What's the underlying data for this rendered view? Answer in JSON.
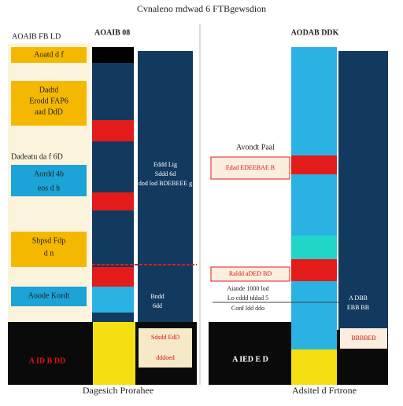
{
  "header": {
    "title": "Cvnaleno mdwad 6 FTBgewsdion"
  },
  "left": {
    "header_left": "AOAIB FB LD",
    "header_right": "AOAIB 08",
    "labels": [
      "Aoatd d f",
      "Dadtd",
      "Erodd FAP6",
      "aad DdD",
      "Dadeatu da f 6D",
      "Aordd 4b",
      "eos d h",
      "Shpsd Fdp",
      "d n",
      "Aoode Kordt",
      "A ID B DD"
    ],
    "column_notes": [
      "Eddd Lig",
      "Sddd 6d",
      "dod lod BDEBEEE g",
      "Bndd",
      "6dd",
      "Sdsdd EdD",
      "dddoed"
    ],
    "footer": "Dagesich Prorahee"
  },
  "right": {
    "header": "AODAB DDK",
    "annotation": "Avondt Paal",
    "red_label": "Edad EDEEBAE B",
    "labels": [
      "Raldd aDED BD",
      "Aiande 1000 lod",
      "Lo cddd tddad 5",
      "Conf ldd ddo",
      "A DBB",
      "EBB BB",
      "A IED E D"
    ],
    "box_label": "BBBBEB",
    "footer": "Adsitel d Frtrone"
  }
}
